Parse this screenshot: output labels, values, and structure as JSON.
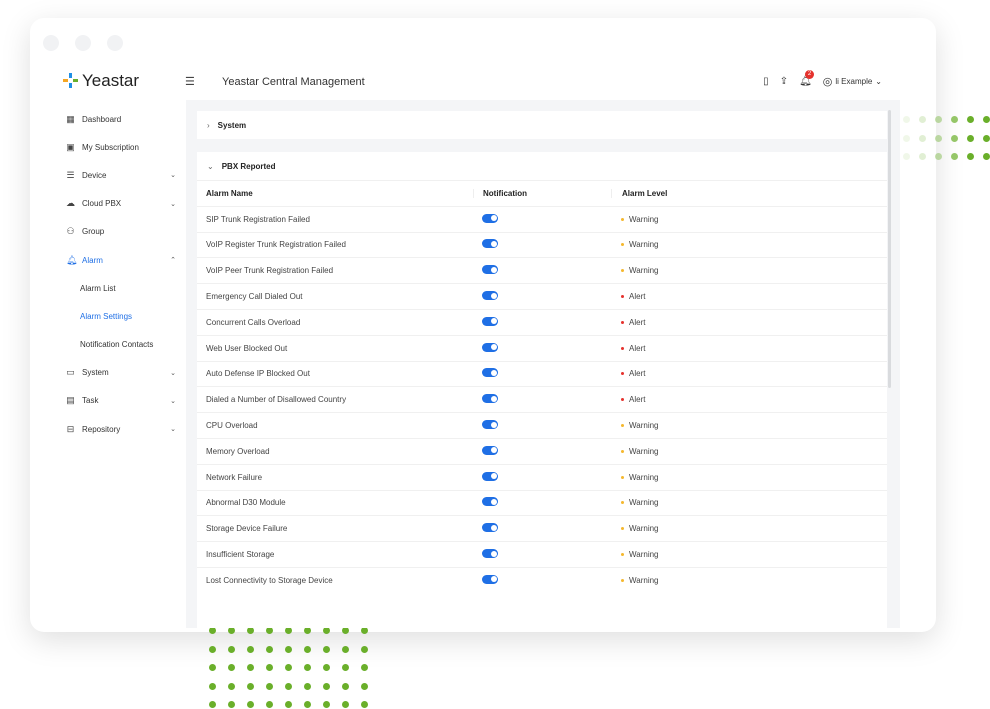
{
  "app": {
    "brand": "Yeastar",
    "title": "Yeastar Central Management",
    "user": "li Example",
    "notification_count": "2"
  },
  "sidebar": {
    "items": [
      {
        "label": "Dashboard",
        "icon": "dashboard-icon",
        "glyph": "▦"
      },
      {
        "label": "My Subscription",
        "icon": "subscription-icon",
        "glyph": "▣"
      },
      {
        "label": "Device",
        "icon": "device-icon",
        "glyph": "☰",
        "chev": "⌄"
      },
      {
        "label": "Cloud PBX",
        "icon": "cloud-icon",
        "glyph": "☁",
        "chev": "⌄"
      },
      {
        "label": "Group",
        "icon": "group-icon",
        "glyph": "⚇"
      },
      {
        "label": "Alarm",
        "icon": "bell-icon",
        "glyph": "🔔︎",
        "chev": "⌃"
      },
      {
        "label": "Alarm List"
      },
      {
        "label": "Alarm Settings"
      },
      {
        "label": "Notification Contacts"
      },
      {
        "label": "System",
        "icon": "system-icon",
        "glyph": "▭",
        "chev": "⌄"
      },
      {
        "label": "Task",
        "icon": "task-icon",
        "glyph": "▤",
        "chev": "⌄"
      },
      {
        "label": "Repository",
        "icon": "repository-icon",
        "glyph": "⊟",
        "chev": "⌄"
      }
    ]
  },
  "sections": {
    "system": "System",
    "pbx": "PBX Reported"
  },
  "table": {
    "columns": [
      "Alarm Name",
      "Notification",
      "Alarm Level"
    ],
    "rows": [
      {
        "name": "SIP Trunk Registration Failed",
        "on": true,
        "level": "Warning"
      },
      {
        "name": "VoIP Register Trunk Registration Failed",
        "on": true,
        "level": "Warning"
      },
      {
        "name": "VoIP Peer Trunk Registration Failed",
        "on": true,
        "level": "Warning"
      },
      {
        "name": "Emergency Call Dialed Out",
        "on": true,
        "level": "Alert"
      },
      {
        "name": "Concurrent Calls Overload",
        "on": true,
        "level": "Alert"
      },
      {
        "name": "Web User Blocked Out",
        "on": true,
        "level": "Alert"
      },
      {
        "name": "Auto Defense IP Blocked Out",
        "on": true,
        "level": "Alert"
      },
      {
        "name": "Dialed a Number of Disallowed Country",
        "on": true,
        "level": "Alert"
      },
      {
        "name": "CPU Overload",
        "on": true,
        "level": "Warning"
      },
      {
        "name": "Memory Overload",
        "on": true,
        "level": "Warning"
      },
      {
        "name": "Network Failure",
        "on": true,
        "level": "Warning"
      },
      {
        "name": "Abnormal D30 Module",
        "on": true,
        "level": "Warning"
      },
      {
        "name": "Storage Device Failure",
        "on": true,
        "level": "Warning"
      },
      {
        "name": "Insufficient Storage",
        "on": true,
        "level": "Warning"
      },
      {
        "name": "Lost Connectivity to Storage Device",
        "on": true,
        "level": "Warning"
      }
    ]
  },
  "colors": {
    "accent": "#1f6fe5",
    "warning": "#f5b82e",
    "alert": "#e5322d",
    "decor": "#6aaf2a"
  }
}
